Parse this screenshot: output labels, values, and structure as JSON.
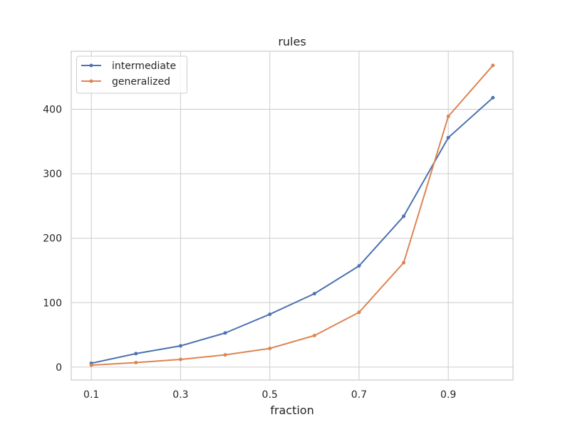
{
  "chart_data": {
    "type": "line",
    "title": "rules",
    "xlabel": "fraction",
    "ylabel": "",
    "x": [
      0.1,
      0.2,
      0.3,
      0.4,
      0.5,
      0.6,
      0.7,
      0.8,
      0.9,
      1.0
    ],
    "xticks": [
      0.1,
      0.3,
      0.5,
      0.7,
      0.9
    ],
    "xtick_labels": [
      "0.1",
      "0.3",
      "0.5",
      "0.7",
      "0.9"
    ],
    "yticks": [
      0,
      100,
      200,
      300,
      400
    ],
    "ytick_labels": [
      "0",
      "100",
      "200",
      "300",
      "400"
    ],
    "xlim": [
      0.055,
      1.045
    ],
    "ylim": [
      -20,
      490
    ],
    "grid": true,
    "legend_position": "top-left",
    "series": [
      {
        "name": "intermediate",
        "color": "#4c72b0",
        "values": [
          6,
          21,
          33,
          53,
          82,
          114,
          157,
          234,
          356,
          418
        ]
      },
      {
        "name": "generalized",
        "color": "#dd8452",
        "values": [
          3,
          7,
          12,
          19,
          29,
          49,
          85,
          162,
          389,
          468
        ]
      }
    ]
  }
}
